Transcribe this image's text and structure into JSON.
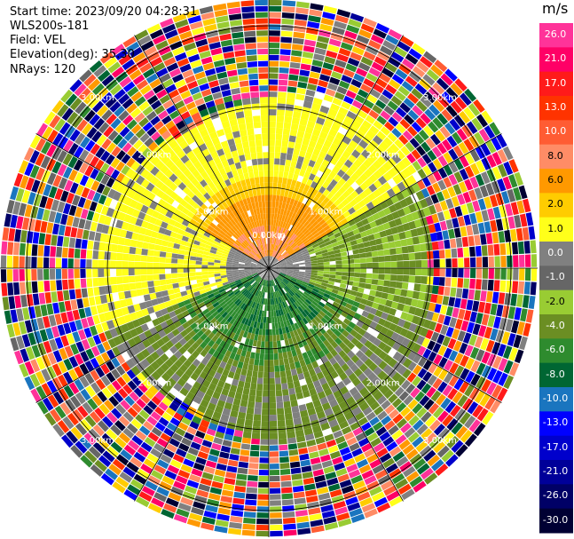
{
  "header": {
    "start_time": "Start time: 2023/09/20 04:28:31",
    "instrument": "WLS200s-181",
    "field": "Field: VEL",
    "elevation": "Elevation(deg): 35.30",
    "nrays": "NRays: 120"
  },
  "colorbar": {
    "unit": "m/s",
    "labels": [
      "26.0",
      "21.0",
      "17.0",
      "13.0",
      "10.0",
      "8.0",
      "6.0",
      "2.0",
      "1.0",
      "0.0",
      "-1.0",
      "-2.0",
      "-4.0",
      "-6.0",
      "-8.0",
      "-10.0",
      "-13.0",
      "-17.0",
      "-21.0",
      "-26.0",
      "-30.0"
    ],
    "colors": [
      "#ff3399",
      "#ff0066",
      "#ff1a1a",
      "#ff3300",
      "#ff5c33",
      "#ff8c66",
      "#ff9900",
      "#ffcc00",
      "#ffff1a",
      "#808080",
      "#666666",
      "#99cc33",
      "#6b8e23",
      "#2e8b2e",
      "#006633",
      "#1a75bf",
      "#0000ff",
      "#0000cc",
      "#000099",
      "#000066",
      "#000033"
    ],
    "light_text_indices": [
      0,
      1,
      2,
      3,
      4,
      9,
      10,
      12,
      13,
      14,
      15,
      16,
      17,
      18,
      19,
      20
    ]
  },
  "chart_data": {
    "type": "ppi",
    "field": "VEL",
    "nrays": 120,
    "range_ring_labels": [
      "1.00km",
      "2.00km",
      "3.00km"
    ],
    "center_ring_label": "0.00km",
    "spoke_angles_deg": [
      0,
      30,
      60,
      90,
      120,
      150,
      180,
      210,
      240,
      270,
      300,
      330
    ],
    "velocity_regions": [
      {
        "range_km": "0.0-0.9",
        "azimuth": "north",
        "velocity_ms": "6 to 10"
      },
      {
        "range_km": "0.9-1.8",
        "azimuth": "north",
        "velocity_ms": "1 to 2"
      },
      {
        "range_km": "0.0-1.6",
        "azimuth": "south",
        "velocity_ms": "-4 to -8"
      },
      {
        "range_km": "1.0-2.0",
        "azimuth": "east-south",
        "velocity_ms": "-2 to -4"
      },
      {
        "range_km": "2.2-3.4",
        "azimuth": "all",
        "velocity_ms": "noise -30 to 26"
      }
    ]
  }
}
